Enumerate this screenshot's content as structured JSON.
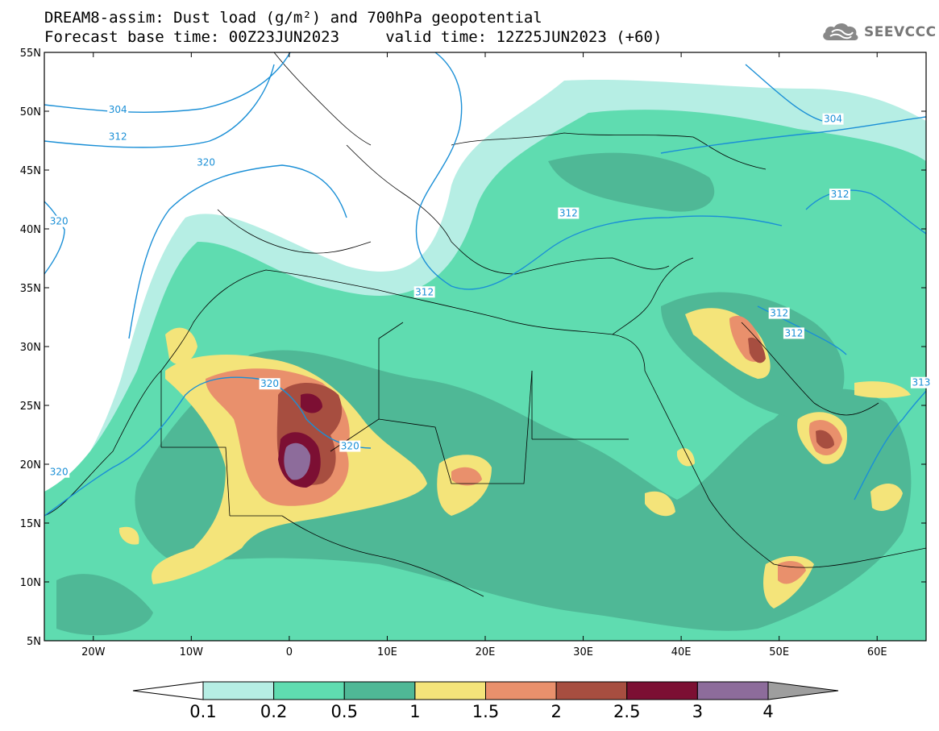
{
  "title": {
    "line1": "DREAM8-assim: Dust load (g/m²) and 700hPa geopotential",
    "line2": "Forecast base time: 00Z23JUN2023     valid time: 12Z25JUN2023 (+60)"
  },
  "logo": {
    "text": "SEEVCCC",
    "icon": "cloud-icon"
  },
  "map": {
    "lon_range": [
      -25,
      65
    ],
    "lat_range": [
      5,
      55
    ],
    "lat_ticks": [
      {
        "value": 55,
        "label": "55N"
      },
      {
        "value": 50,
        "label": "50N"
      },
      {
        "value": 45,
        "label": "45N"
      },
      {
        "value": 40,
        "label": "40N"
      },
      {
        "value": 35,
        "label": "35N"
      },
      {
        "value": 30,
        "label": "30N"
      },
      {
        "value": 25,
        "label": "25N"
      },
      {
        "value": 20,
        "label": "20N"
      },
      {
        "value": 15,
        "label": "15N"
      },
      {
        "value": 10,
        "label": "10N"
      },
      {
        "value": 5,
        "label": "5N"
      }
    ],
    "lon_ticks": [
      {
        "value": -20,
        "label": "20W"
      },
      {
        "value": -10,
        "label": "10W"
      },
      {
        "value": 0,
        "label": "0"
      },
      {
        "value": 10,
        "label": "10E"
      },
      {
        "value": 20,
        "label": "20E"
      },
      {
        "value": 30,
        "label": "30E"
      },
      {
        "value": 40,
        "label": "40E"
      },
      {
        "value": 50,
        "label": "50E"
      },
      {
        "value": 60,
        "label": "60E"
      }
    ],
    "contour_labels": [
      {
        "text": "304",
        "lon": -17.5,
        "lat": 50.0
      },
      {
        "text": "312",
        "lon": -17.5,
        "lat": 47.7
      },
      {
        "text": "320",
        "lon": -8.5,
        "lat": 45.5
      },
      {
        "text": "320",
        "lon": -23.5,
        "lat": 40.5
      },
      {
        "text": "312",
        "lon": 28.5,
        "lat": 41.2
      },
      {
        "text": "312",
        "lon": 13.8,
        "lat": 34.5
      },
      {
        "text": "304",
        "lon": 55.5,
        "lat": 49.2
      },
      {
        "text": "312",
        "lon": 56.2,
        "lat": 42.8
      },
      {
        "text": "312",
        "lon": 50.0,
        "lat": 32.7
      },
      {
        "text": "312",
        "lon": 51.5,
        "lat": 31.0
      },
      {
        "text": "320",
        "lon": -2.0,
        "lat": 26.7
      },
      {
        "text": "320",
        "lon": 6.2,
        "lat": 21.4
      },
      {
        "text": "320",
        "lon": -23.5,
        "lat": 19.2
      },
      {
        "text": "313",
        "lon": 64.5,
        "lat": 26.8
      }
    ]
  },
  "colorbar": {
    "colors": [
      "#ffffff",
      "#b6eee4",
      "#5fdcb0",
      "#4fb896",
      "#f4e47a",
      "#e9906c",
      "#a74e40",
      "#7c0f33",
      "#8d6c9b",
      "#9e9e9e"
    ],
    "labels": [
      "0.1",
      "0.2",
      "0.5",
      "1",
      "1.5",
      "2",
      "2.5",
      "3",
      "4"
    ]
  }
}
